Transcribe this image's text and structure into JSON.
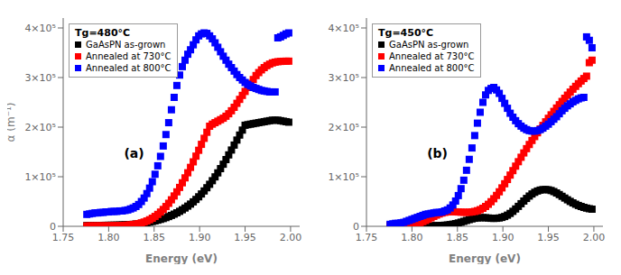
{
  "chart_data": [
    {
      "type": "scatter",
      "title": "Tg=480°C",
      "annotations": [
        "(a)"
      ],
      "xlabel": "Energy (eV)",
      "ylabel": "α (m⁻¹)",
      "xlim": [
        1.75,
        2.01
      ],
      "ylim": [
        0,
        420000
      ],
      "xticks": [
        1.75,
        {
          "value": 1.8,
          "label": "1.80"
        },
        1.85,
        {
          "value": 1.9,
          "label": "1.90"
        },
        1.95,
        {
          "value": 2.0,
          "label": "2.00"
        }
      ],
      "yticks": [
        0,
        {
          "value": 100000,
          "label": "1×10⁵"
        },
        {
          "value": 200000,
          "label": "2×10⁵"
        },
        {
          "value": 300000,
          "label": "3×10⁵"
        },
        {
          "value": 400000,
          "label": "4×10⁵"
        }
      ],
      "grid": false,
      "legend": "upper left",
      "marker": "square",
      "x": [
        1.776,
        1.779,
        1.782,
        1.785,
        1.788,
        1.791,
        1.794,
        1.797,
        1.8,
        1.803,
        1.806,
        1.809,
        1.812,
        1.815,
        1.818,
        1.821,
        1.824,
        1.827,
        1.83,
        1.833,
        1.836,
        1.839,
        1.842,
        1.845,
        1.848,
        1.851,
        1.854,
        1.857,
        1.86,
        1.863,
        1.866,
        1.869,
        1.872,
        1.875,
        1.878,
        1.881,
        1.884,
        1.887,
        1.89,
        1.893,
        1.896,
        1.899,
        1.902,
        1.905,
        1.908,
        1.911,
        1.914,
        1.917,
        1.92,
        1.923,
        1.926,
        1.929,
        1.932,
        1.935,
        1.938,
        1.941,
        1.944,
        1.947,
        1.95,
        1.953,
        1.956,
        1.959,
        1.962,
        1.965,
        1.968,
        1.971,
        1.974,
        1.977,
        1.98,
        1.983,
        1.986,
        1.989,
        1.992,
        1.995,
        1.998
      ],
      "series": [
        {
          "name": "GaAsPN as-grown",
          "color": "black",
          "values": [
            1500,
            1600,
            1600,
            1700,
            1800,
            1800,
            1900,
            2000,
            2100,
            2200,
            2300,
            2400,
            2600,
            2800,
            3000,
            3300,
            3600,
            4000,
            4500,
            5100,
            5800,
            6600,
            7500,
            8500,
            9700,
            11000,
            12400,
            14000,
            15700,
            17600,
            19700,
            22000,
            24500,
            27200,
            30200,
            33400,
            36900,
            40700,
            44800,
            49300,
            54200,
            59500,
            65200,
            71300,
            77800,
            84700,
            92000,
            99700,
            107800,
            116300,
            125200,
            134500,
            144000,
            153800,
            163800,
            173900,
            184000,
            194000,
            203800,
            205000,
            206000,
            207000,
            208000,
            209000,
            210000,
            211000,
            212000,
            213000,
            214000,
            214000,
            214000,
            213000,
            212000,
            211000,
            210000
          ]
        },
        {
          "name": "Annealed at 730°C",
          "color": "red",
          "values": [
            800,
            800,
            800,
            800,
            900,
            900,
            900,
            1000,
            1000,
            1100,
            1200,
            1300,
            1500,
            1700,
            2000,
            2400,
            2900,
            3600,
            4400,
            5500,
            6900,
            8600,
            10700,
            13300,
            16300,
            19900,
            24000,
            28700,
            34000,
            39900,
            46400,
            53500,
            61200,
            69500,
            78400,
            87800,
            97700,
            108000,
            118800,
            130000,
            141500,
            153300,
            165300,
            177400,
            189600,
            201800,
            206000,
            209000,
            212000,
            215000,
            218000,
            222000,
            227000,
            233000,
            240000,
            248000,
            256000,
            264000,
            272000,
            280000,
            288000,
            296000,
            304000,
            310000,
            315500,
            320000,
            324000,
            327000,
            329500,
            331000,
            332000,
            332500,
            332800,
            333000,
            333000
          ]
        },
        {
          "name": "Annealed at 800°C",
          "color": "blue",
          "values": [
            24000,
            25000,
            26000,
            27000,
            27000,
            28000,
            28000,
            29000,
            29000,
            30000,
            30000,
            30000,
            31000,
            31000,
            32000,
            33000,
            35000,
            37000,
            40000,
            44000,
            50000,
            57000,
            66000,
            77000,
            90000,
            105000,
            122000,
            141000,
            162000,
            185000,
            209000,
            235000,
            260000,
            284000,
            305000,
            322000,
            335000,
            347000,
            356000,
            366000,
            376000,
            384000,
            388000,
            390000,
            389000,
            384000,
            378000,
            370000,
            361000,
            352000,
            343000,
            335000,
            327000,
            320000,
            313000,
            306000,
            300000,
            295000,
            290000,
            286000,
            283000,
            280000,
            278000,
            276000,
            274000,
            273000,
            272000,
            271000,
            271000,
            271000,
            380000,
            382000,
            385000,
            388000,
            390000
          ]
        }
      ]
    },
    {
      "type": "scatter",
      "title": "Tg=450°C",
      "annotations": [
        "(b)"
      ],
      "xlabel": "Energy (eV)",
      "xlim": [
        1.75,
        2.01
      ],
      "ylim": [
        0,
        420000
      ],
      "xticks": [
        1.75,
        {
          "value": 1.8,
          "label": "1.80"
        },
        1.85,
        {
          "value": 1.9,
          "label": "1.90"
        },
        1.95,
        {
          "value": 2.0,
          "label": "2.00"
        }
      ],
      "yticks": [
        0,
        {
          "value": 100000,
          "label": "1×10⁵"
        },
        {
          "value": 200000,
          "label": "2×10⁵"
        },
        {
          "value": 300000,
          "label": "3×10⁵"
        },
        {
          "value": 400000,
          "label": "4×10⁵"
        }
      ],
      "grid": false,
      "legend": "upper left",
      "marker": "square",
      "x": [
        1.776,
        1.779,
        1.782,
        1.785,
        1.788,
        1.791,
        1.794,
        1.797,
        1.8,
        1.803,
        1.806,
        1.809,
        1.812,
        1.815,
        1.818,
        1.821,
        1.824,
        1.827,
        1.83,
        1.833,
        1.836,
        1.839,
        1.842,
        1.845,
        1.848,
        1.851,
        1.854,
        1.857,
        1.86,
        1.863,
        1.866,
        1.869,
        1.872,
        1.875,
        1.878,
        1.881,
        1.884,
        1.887,
        1.89,
        1.893,
        1.896,
        1.899,
        1.902,
        1.905,
        1.908,
        1.911,
        1.914,
        1.917,
        1.92,
        1.923,
        1.926,
        1.929,
        1.932,
        1.935,
        1.938,
        1.941,
        1.944,
        1.947,
        1.95,
        1.953,
        1.956,
        1.959,
        1.962,
        1.965,
        1.968,
        1.971,
        1.974,
        1.977,
        1.98,
        1.983,
        1.986,
        1.989,
        1.992,
        1.995,
        1.998
      ],
      "series": [
        {
          "name": "GaAsPN as-grown",
          "color": "black",
          "values": [
            1000,
            1000,
            1000,
            1000,
            1000,
            1000,
            1000,
            1000,
            1000,
            1000,
            1000,
            1000,
            1000,
            1000,
            1000,
            1100,
            1200,
            1300,
            1500,
            1800,
            2200,
            2700,
            3400,
            4300,
            5400,
            6700,
            8300,
            10000,
            11800,
            13500,
            15000,
            16200,
            17000,
            17400,
            17500,
            17300,
            16800,
            16200,
            16000,
            16200,
            16800,
            18000,
            19800,
            22500,
            26000,
            30200,
            35000,
            40200,
            45600,
            51000,
            56200,
            61000,
            65200,
            68600,
            71200,
            73000,
            74000,
            74200,
            73600,
            72200,
            70000,
            67200,
            64000,
            60500,
            57000,
            53500,
            50200,
            47200,
            44500,
            42000,
            40000,
            38200,
            36700,
            35500,
            34500
          ]
        },
        {
          "name": "Annealed at 730°C",
          "color": "red",
          "values": [
            1500,
            1600,
            1700,
            1800,
            2000,
            2200,
            2500,
            3000,
            3700,
            4600,
            5900,
            7500,
            9500,
            11800,
            14400,
            17200,
            20000,
            22600,
            24900,
            26800,
            28200,
            29000,
            29400,
            29400,
            29200,
            28900,
            28500,
            28300,
            28200,
            28400,
            29000,
            30000,
            31500,
            33600,
            36400,
            40000,
            44400,
            49600,
            55600,
            62300,
            69600,
            77500,
            85800,
            94400,
            103300,
            112300,
            121300,
            130300,
            139200,
            148000,
            156600,
            165000,
            173100,
            181000,
            188700,
            196200,
            203500,
            210700,
            217800,
            224800,
            231700,
            238500,
            245200,
            251800,
            258200,
            264500,
            270600,
            276500,
            282200,
            287700,
            293000,
            298000,
            302800,
            330000,
            335000
          ]
        },
        {
          "name": "Annealed at 800°C",
          "color": "blue",
          "values": [
            4000,
            5000,
            6000,
            6000,
            7000,
            8000,
            10000,
            12000,
            14000,
            16000,
            18000,
            20000,
            22000,
            24000,
            25000,
            26000,
            27000,
            28000,
            28000,
            29000,
            31000,
            33000,
            37000,
            43000,
            51000,
            62000,
            76000,
            93000,
            113000,
            135000,
            158000,
            183000,
            208000,
            230000,
            250000,
            265000,
            274000,
            278000,
            280000,
            275000,
            268000,
            258000,
            248000,
            238000,
            228000,
            220000,
            213000,
            207000,
            202000,
            198000,
            195000,
            193000,
            192000,
            192000,
            193000,
            195000,
            198000,
            202000,
            206000,
            211000,
            216000,
            221000,
            227000,
            233000,
            238000,
            243000,
            247000,
            251000,
            254000,
            257000,
            259000,
            260000,
            382000,
            375000,
            360000
          ]
        }
      ]
    }
  ]
}
